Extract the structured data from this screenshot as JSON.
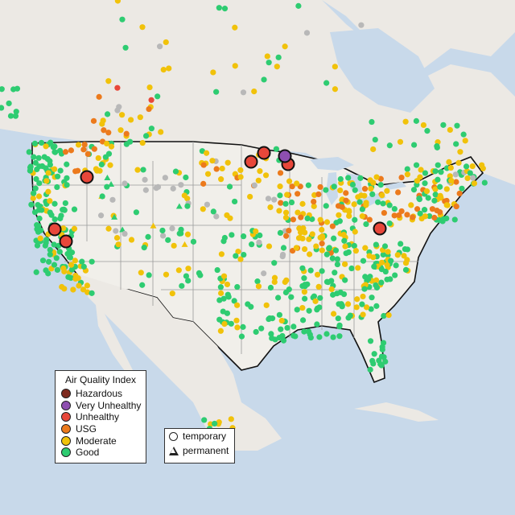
{
  "legend": {
    "title": "Air Quality Index",
    "categories": [
      {
        "label": "Hazardous",
        "color": "#7e2a1e"
      },
      {
        "label": "Very Unhealthy",
        "color": "#8e4fb0"
      },
      {
        "label": "Unhealthy",
        "color": "#e8473a"
      },
      {
        "label": "USG",
        "color": "#ec7a1c"
      },
      {
        "label": "Moderate",
        "color": "#f1c20a"
      },
      {
        "label": "Good",
        "color": "#2ecc71"
      }
    ],
    "no_data_color": "#b8b8b8",
    "monitor_types": [
      {
        "label": "temporary",
        "icon": "circle-icon"
      },
      {
        "label": "permanent",
        "icon": "triangle-icon"
      }
    ]
  },
  "colors": {
    "water": "#c8d9ea",
    "land": "#ece9e4",
    "us_land": "#f1efea",
    "border": "#111111",
    "state_lines": "#9a9a9a"
  }
}
